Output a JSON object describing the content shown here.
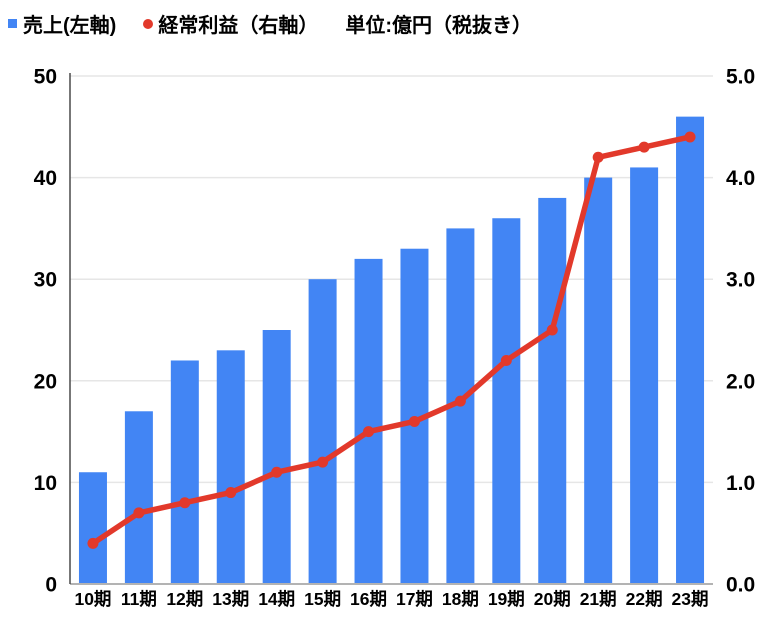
{
  "legend": {
    "series1": "売上(左軸)",
    "series2": "経常利益（右軸）",
    "unit_note": "単位:億円（税抜き）"
  },
  "colors": {
    "bar": "#4285F4",
    "line": "#E2392B",
    "gridline": "#E6E6E6",
    "left_axis_line": "#4A4A4A",
    "bottom_axis_line": "#B3B3B3",
    "text": "#000000"
  },
  "chart_data": {
    "type": "bar",
    "subtype": "combo-bar-line",
    "title": "",
    "categories": [
      "10期",
      "11期",
      "12期",
      "13期",
      "14期",
      "15期",
      "16期",
      "17期",
      "18期",
      "19期",
      "20期",
      "21期",
      "22期",
      "23期"
    ],
    "series": [
      {
        "name": "売上(左軸)",
        "type": "bar",
        "axis": "left",
        "color": "#4285F4",
        "values": [
          11,
          17,
          22,
          23,
          25,
          30,
          32,
          33,
          35,
          36,
          38,
          40,
          41,
          46
        ]
      },
      {
        "name": "経常利益（右軸）",
        "type": "line",
        "axis": "right",
        "color": "#E2392B",
        "values": [
          0.4,
          0.7,
          0.8,
          0.9,
          1.1,
          1.2,
          1.5,
          1.6,
          1.8,
          2.2,
          2.5,
          4.2,
          4.3,
          4.4
        ]
      }
    ],
    "left_axis": {
      "min": 0,
      "max": 50,
      "ticks": [
        "0",
        "10",
        "20",
        "30",
        "40",
        "50"
      ]
    },
    "right_axis": {
      "min": 0.0,
      "max": 5.0,
      "ticks": [
        "0.0",
        "1.0",
        "2.0",
        "3.0",
        "4.0",
        "5.0"
      ]
    },
    "grid": true,
    "legend_position": "top-left",
    "unit_note": "単位:億円（税抜き）"
  }
}
